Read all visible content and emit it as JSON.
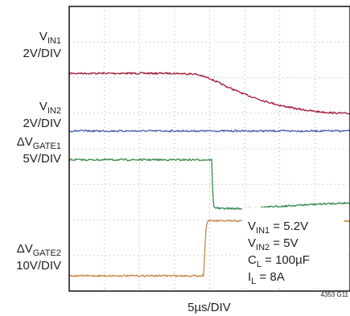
{
  "chart_data": {
    "type": "line",
    "title": "",
    "xlabel": "5µs/DIV",
    "ylabel": "",
    "x_divisions": 8,
    "y_divisions": 8,
    "grid": true,
    "figure_id": "4353 G11",
    "time_per_div_us": 5,
    "series": [
      {
        "name": "VIN1",
        "label": {
          "main": "V",
          "sub": "IN1",
          "scale": "2V/DIV"
        },
        "color": "#a3213f",
        "x": [
          0,
          1,
          2,
          3,
          3.6,
          4,
          4.5,
          5,
          5.5,
          6,
          6.5,
          7,
          7.5,
          8
        ],
        "y": [
          6.12,
          6.12,
          6.12,
          6.12,
          6.1,
          5.98,
          5.74,
          5.53,
          5.36,
          5.22,
          5.12,
          5.05,
          5.01,
          4.99
        ]
      },
      {
        "name": "VIN2",
        "label": {
          "main": "V",
          "sub": "IN2",
          "scale": "2V/DIV"
        },
        "color": "#4a5fae",
        "x": [
          0,
          1,
          2,
          3,
          4,
          5,
          6,
          7,
          8
        ],
        "y": [
          4.5,
          4.5,
          4.5,
          4.5,
          4.5,
          4.5,
          4.5,
          4.5,
          4.5
        ]
      },
      {
        "name": "ΔVGATE1",
        "label": {
          "main": "ΔV",
          "sub": "GATE1",
          "scale": "5V/DIV"
        },
        "color": "#3a8a4a",
        "x": [
          0,
          1,
          2,
          3,
          4.06,
          4.08,
          4.12,
          4.3,
          4.8,
          5,
          5.5,
          6,
          6.5,
          7,
          7.5,
          8
        ],
        "y": [
          3.69,
          3.69,
          3.69,
          3.69,
          3.69,
          3.0,
          2.36,
          2.32,
          2.32,
          2.32,
          2.35,
          2.38,
          2.41,
          2.44,
          2.46,
          2.48
        ]
      },
      {
        "name": "ΔVGATE2",
        "label": {
          "main": "ΔV",
          "sub": "GATE2",
          "scale": "10V/DIV"
        },
        "color": "#c8894a",
        "x": [
          0,
          1,
          2,
          3,
          3.83,
          3.85,
          3.9,
          3.95,
          4.2,
          5,
          6,
          7,
          8
        ],
        "y": [
          0.43,
          0.43,
          0.43,
          0.43,
          0.43,
          0.9,
          1.8,
          1.98,
          1.97,
          1.97,
          1.97,
          1.97,
          1.97
        ]
      }
    ],
    "conditions": [
      {
        "main": "V",
        "sub": "IN1",
        "value": " = 5.2V"
      },
      {
        "main": "V",
        "sub": "IN2",
        "value": " = 5V"
      },
      {
        "main": "C",
        "sub": "L",
        "value": " = 100µF"
      },
      {
        "main": "I",
        "sub": "L",
        "value": " = 8A"
      }
    ]
  }
}
